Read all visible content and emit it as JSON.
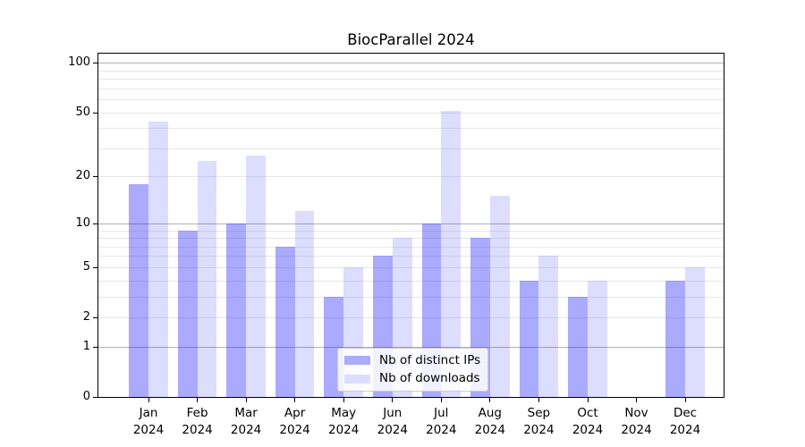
{
  "title": "BiocParallel 2024",
  "chart_data": {
    "type": "bar",
    "title": "BiocParallel 2024",
    "categories": [
      "Jan",
      "Feb",
      "Mar",
      "Apr",
      "May",
      "Jun",
      "Jul",
      "Aug",
      "Sep",
      "Oct",
      "Nov",
      "Dec"
    ],
    "x_tick_second_line": "2024",
    "series": [
      {
        "name": "Nb of distinct IPs",
        "key": "distinct-ips",
        "color": "#aaaaff",
        "values": [
          18,
          9,
          10,
          7,
          3,
          6,
          10,
          8,
          4,
          3,
          0,
          4
        ]
      },
      {
        "name": "Nb of downloads",
        "key": "downloads",
        "color": "#ddddff",
        "values": [
          44,
          25,
          27,
          12,
          5,
          8,
          51,
          15,
          6,
          4,
          0,
          5
        ]
      }
    ],
    "xlabel": "",
    "ylabel": "",
    "y_scale": "log1p",
    "ylim": [
      0,
      113
    ],
    "y_ticks": [
      0,
      1,
      2,
      5,
      10,
      20,
      50,
      100
    ],
    "y_gridlines_major": [
      1,
      10,
      100
    ],
    "y_gridlines_minor": [
      2,
      3,
      4,
      5,
      6,
      7,
      8,
      9,
      20,
      30,
      40,
      50,
      60,
      70,
      80,
      90
    ],
    "grid": true,
    "legend_position": "lower-center-inside"
  },
  "colors": {
    "background": "#ffffff",
    "axis": "#000000",
    "text": "#000000",
    "grid_major": "rgba(60,60,60,0.40)",
    "grid_minor": "rgba(60,60,60,0.12)",
    "legend_border": "#cccccc",
    "legend_bg": "rgba(255,255,255,0.85)"
  }
}
